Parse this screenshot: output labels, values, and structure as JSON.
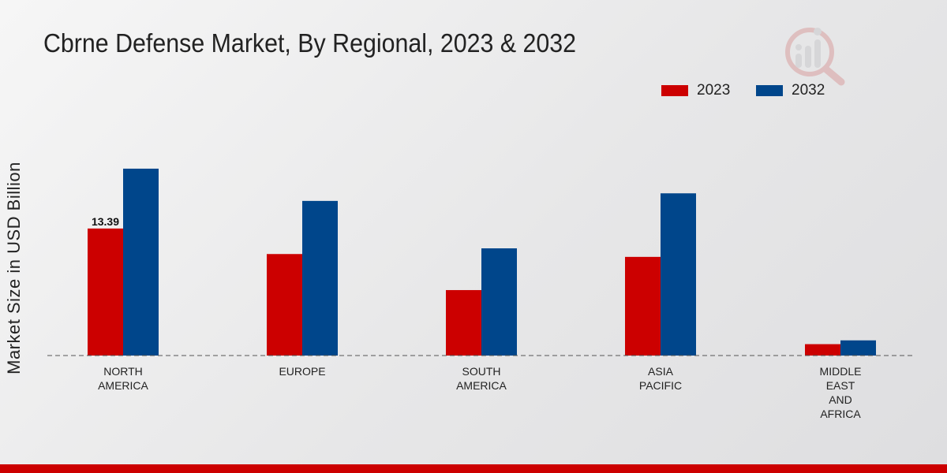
{
  "chart_data": {
    "type": "bar",
    "title": "Cbrne Defense Market, By Regional, 2023 & 2032",
    "xlabel": "",
    "ylabel": "Market Size in USD Billion",
    "categories": [
      "NORTH\nAMERICA",
      "EUROPE",
      "SOUTH\nAMERICA",
      "ASIA\nPACIFIC",
      "MIDDLE\nEAST\nAND\nAFRICA"
    ],
    "series": [
      {
        "name": "2023",
        "color": "#cc0000",
        "values": [
          13.39,
          10.7,
          6.9,
          10.4,
          1.2
        ]
      },
      {
        "name": "2032",
        "color": "#00468b",
        "values": [
          19.7,
          16.3,
          11.3,
          17.1,
          1.6
        ]
      }
    ],
    "data_labels": [
      {
        "series": 0,
        "index": 0,
        "text": "13.39"
      }
    ],
    "ylim": [
      0,
      30
    ],
    "grid": false,
    "baseline_style": "dashed",
    "legend_position": "top-right"
  },
  "colors": {
    "accent_bottom_bar": "#cc0000"
  },
  "logo": {
    "icon": "analytics-magnifier-icon"
  }
}
